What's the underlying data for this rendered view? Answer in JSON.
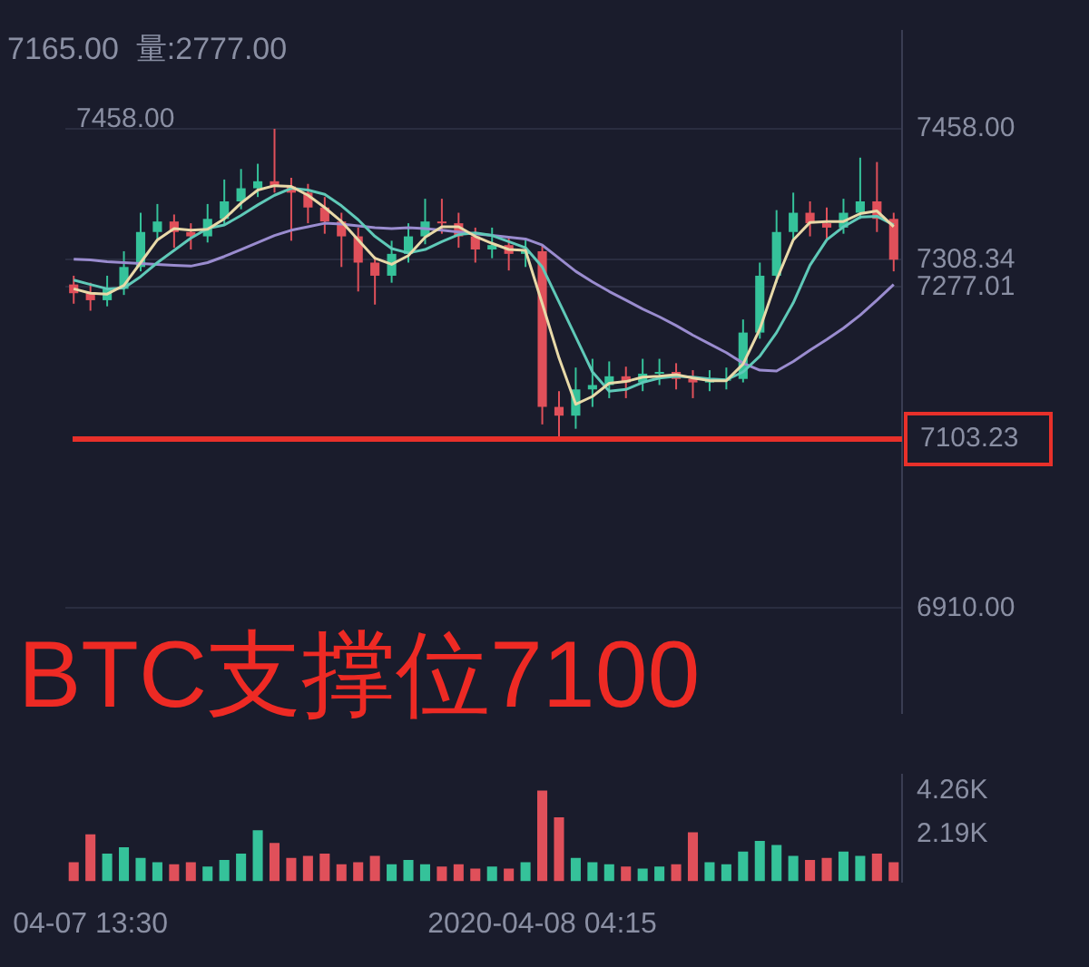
{
  "chart_data": [
    {
      "type": "candlestick",
      "categories": [
        null,
        null,
        null,
        null,
        null,
        null,
        null,
        null,
        null,
        null,
        null,
        null,
        null,
        null,
        null,
        null,
        null,
        null,
        null,
        null,
        null,
        null,
        null,
        null,
        null,
        null,
        null,
        null,
        null,
        null,
        null,
        null,
        null,
        null,
        null,
        null,
        null,
        null,
        null,
        null,
        null,
        null,
        null,
        null,
        null,
        null,
        null,
        null,
        null,
        null
      ],
      "ohlc": [
        [
          7280,
          7290,
          7258,
          7270
        ],
        [
          7270,
          7282,
          7250,
          7262
        ],
        [
          7262,
          7290,
          7255,
          7275
        ],
        [
          7275,
          7318,
          7268,
          7300
        ],
        [
          7300,
          7362,
          7295,
          7340
        ],
        [
          7340,
          7372,
          7330,
          7352
        ],
        [
          7352,
          7360,
          7322,
          7340
        ],
        [
          7340,
          7350,
          7320,
          7335
        ],
        [
          7335,
          7372,
          7328,
          7355
        ],
        [
          7355,
          7400,
          7348,
          7375
        ],
        [
          7375,
          7412,
          7366,
          7390
        ],
        [
          7390,
          7418,
          7380,
          7398
        ],
        [
          7398,
          7458,
          7385,
          7392
        ],
        [
          7392,
          7402,
          7330,
          7385
        ],
        [
          7385,
          7395,
          7350,
          7368
        ],
        [
          7368,
          7380,
          7338,
          7352
        ],
        [
          7352,
          7362,
          7300,
          7335
        ],
        [
          7335,
          7345,
          7272,
          7305
        ],
        [
          7305,
          7312,
          7257,
          7290
        ],
        [
          7290,
          7330,
          7282,
          7315
        ],
        [
          7315,
          7350,
          7305,
          7335
        ],
        [
          7335,
          7378,
          7326,
          7352
        ],
        [
          7352,
          7378,
          7338,
          7350
        ],
        [
          7350,
          7362,
          7322,
          7335
        ],
        [
          7335,
          7345,
          7305,
          7320
        ],
        [
          7320,
          7345,
          7310,
          7325
        ],
        [
          7325,
          7334,
          7296,
          7315
        ],
        [
          7315,
          7332,
          7300,
          7318
        ],
        [
          7318,
          7325,
          7120,
          7140
        ],
        [
          7140,
          7158,
          7103.23,
          7130
        ],
        [
          7130,
          7185,
          7115,
          7160
        ],
        [
          7160,
          7195,
          7140,
          7165
        ],
        [
          7165,
          7192,
          7150,
          7175
        ],
        [
          7175,
          7186,
          7150,
          7168
        ],
        [
          7168,
          7195,
          7158,
          7178
        ],
        [
          7178,
          7195,
          7165,
          7180
        ],
        [
          7180,
          7190,
          7160,
          7172
        ],
        [
          7172,
          7182,
          7150,
          7168
        ],
        [
          7168,
          7182,
          7158,
          7170
        ],
        [
          7170,
          7185,
          7160,
          7172
        ],
        [
          7172,
          7240,
          7168,
          7225
        ],
        [
          7225,
          7305,
          7218,
          7290
        ],
        [
          7290,
          7365,
          7282,
          7340
        ],
        [
          7340,
          7385,
          7330,
          7362
        ],
        [
          7362,
          7375,
          7335,
          7350
        ],
        [
          7350,
          7368,
          7332,
          7345
        ],
        [
          7345,
          7378,
          7338,
          7362
        ],
        [
          7362,
          7425,
          7355,
          7375
        ],
        [
          7375,
          7420,
          7340,
          7355
        ],
        [
          7355,
          7362,
          7295,
          7308.34
        ]
      ],
      "colors": [
        "#e0505a",
        "#e0505a",
        "#35c29a",
        "#35c29a",
        "#35c29a",
        "#35c29a",
        "#e0505a",
        "#e0505a",
        "#35c29a",
        "#35c29a",
        "#35c29a",
        "#35c29a",
        "#e0505a",
        "#e0505a",
        "#e0505a",
        "#e0505a",
        "#e0505a",
        "#e0505a",
        "#e0505a",
        "#35c29a",
        "#35c29a",
        "#35c29a",
        "#e0505a",
        "#e0505a",
        "#e0505a",
        "#35c29a",
        "#e0505a",
        "#35c29a",
        "#e0505a",
        "#e0505a",
        "#35c29a",
        "#35c29a",
        "#35c29a",
        "#e0505a",
        "#35c29a",
        "#35c29a",
        "#e0505a",
        "#e0505a",
        "#35c29a",
        "#35c29a",
        "#35c29a",
        "#35c29a",
        "#35c29a",
        "#35c29a",
        "#e0505a",
        "#e0505a",
        "#35c29a",
        "#35c29a",
        "#e0505a",
        "#e0505a"
      ],
      "series": [
        {
          "type": "line",
          "color": "#e8d9a8",
          "values": [
            7275,
            7270,
            7269,
            7279,
            7305,
            7331,
            7344,
            7342,
            7343,
            7355,
            7373,
            7388,
            7393,
            7392,
            7382,
            7368,
            7352,
            7331,
            7310,
            7303,
            7313,
            7334,
            7346,
            7346,
            7335,
            7327,
            7320,
            7319,
            7258,
            7196,
            7143,
            7152,
            7167,
            7169,
            7174,
            7175,
            7177,
            7173,
            7170,
            7170,
            7189,
            7229,
            7285,
            7331,
            7351,
            7352,
            7352,
            7361,
            7364,
            7346
          ]
        },
        {
          "type": "line",
          "color": "#5fc9b8",
          "values": [
            7285,
            7280,
            7275,
            7276,
            7289,
            7305,
            7319,
            7333,
            7344,
            7348,
            7359,
            7371,
            7382,
            7390,
            7388,
            7383,
            7370,
            7354,
            7335,
            7321,
            7316,
            7320,
            7329,
            7337,
            7339,
            7336,
            7329,
            7322,
            7300,
            7260,
            7220,
            7180,
            7158,
            7160,
            7168,
            7173,
            7175,
            7174,
            7172,
            7171,
            7180,
            7198,
            7225,
            7259,
            7302,
            7331,
            7346,
            7357,
            7358,
            7348
          ]
        },
        {
          "type": "line",
          "color": "#9a8ccf",
          "values": [
            7309,
            7308,
            7306,
            7305,
            7304,
            7303,
            7302,
            7301,
            7305,
            7312,
            7320,
            7328,
            7336,
            7342,
            7346,
            7350,
            7349,
            7347,
            7345,
            7344,
            7345,
            7344,
            7342,
            7340,
            7338,
            7336,
            7334,
            7332,
            7325,
            7310,
            7295,
            7283,
            7272,
            7262,
            7252,
            7243,
            7233,
            7222,
            7212,
            7202,
            7190,
            7182,
            7181,
            7192,
            7205,
            7217,
            7230,
            7245,
            7262,
            7280
          ]
        }
      ],
      "ylim": [
        6790,
        7570
      ],
      "yticks": [
        {
          "value": 7458,
          "label": "7458.00"
        },
        {
          "value": 7308.34,
          "label": "7308.34"
        },
        {
          "value": 7277.01,
          "label": "7277.01"
        },
        {
          "value": 6910,
          "label": "6910.00"
        }
      ],
      "ref_lines": [
        {
          "axis": "y",
          "value": 7103.23,
          "label": "7103.23",
          "color": "#e8302a"
        }
      ],
      "annotations": [
        "7165.00  量:2777.00",
        "7458.00",
        "BTC支撑位7100"
      ],
      "grid": "y",
      "tick_labels": "y",
      "legend": false
    },
    {
      "type": "bar",
      "categories": [
        null,
        "04-07 13:30",
        null,
        null,
        null,
        null,
        null,
        null,
        null,
        null,
        null,
        null,
        null,
        null,
        null,
        null,
        null,
        null,
        null,
        null,
        null,
        null,
        null,
        null,
        null,
        null,
        null,
        null,
        "2020-04-08 04:15",
        null,
        null,
        null,
        null,
        null,
        null,
        null,
        null,
        null,
        null,
        null,
        null,
        null,
        null,
        null,
        null,
        null,
        null,
        null,
        null,
        null
      ],
      "values": [
        900,
        2200,
        1300,
        1600,
        1100,
        900,
        800,
        900,
        700,
        1000,
        1300,
        2400,
        1800,
        1100,
        1200,
        1300,
        800,
        900,
        1200,
        800,
        1000,
        800,
        700,
        800,
        600,
        700,
        600,
        900,
        4260,
        3000,
        1100,
        900,
        800,
        700,
        600,
        700,
        800,
        2300,
        900,
        800,
        1400,
        1900,
        1700,
        1200,
        1000,
        1100,
        1400,
        1200,
        1300,
        900
      ],
      "colors": [
        "#e0505a",
        "#e0505a",
        "#35c29a",
        "#35c29a",
        "#35c29a",
        "#35c29a",
        "#e0505a",
        "#e0505a",
        "#35c29a",
        "#35c29a",
        "#35c29a",
        "#35c29a",
        "#e0505a",
        "#e0505a",
        "#e0505a",
        "#e0505a",
        "#e0505a",
        "#e0505a",
        "#e0505a",
        "#35c29a",
        "#35c29a",
        "#35c29a",
        "#e0505a",
        "#e0505a",
        "#e0505a",
        "#35c29a",
        "#e0505a",
        "#35c29a",
        "#e0505a",
        "#e0505a",
        "#35c29a",
        "#35c29a",
        "#35c29a",
        "#e0505a",
        "#35c29a",
        "#35c29a",
        "#e0505a",
        "#e0505a",
        "#35c29a",
        "#35c29a",
        "#35c29a",
        "#35c29a",
        "#35c29a",
        "#35c29a",
        "#e0505a",
        "#e0505a",
        "#35c29a",
        "#35c29a",
        "#e0505a",
        "#e0505a"
      ],
      "ylim": [
        0,
        5000
      ],
      "yticks": [
        {
          "value": 2190,
          "label": "2.19K"
        },
        {
          "value": 4260,
          "label": "4.26K"
        }
      ],
      "grid": false,
      "legend": false
    }
  ]
}
